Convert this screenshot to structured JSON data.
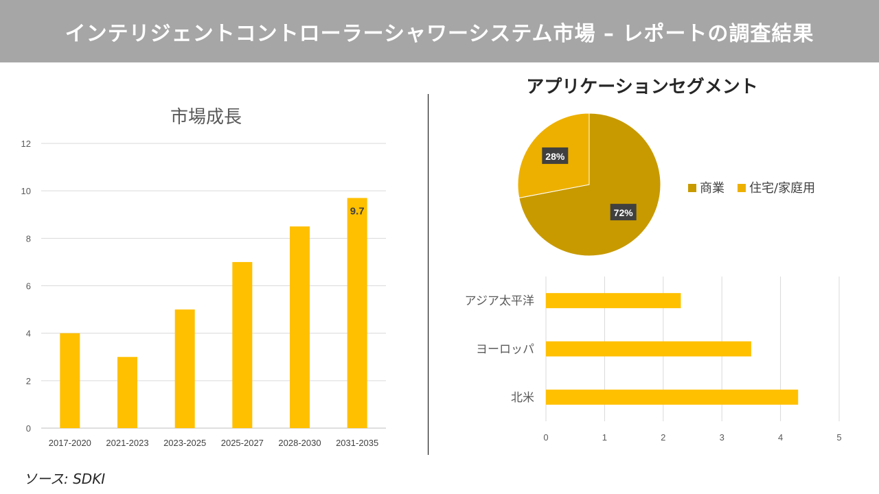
{
  "banner_title": "インテリジェントコントローラーシャワーシステム市場 – レポートの調査結果",
  "source_text": "ソース: SDKI",
  "colors": {
    "bar": "#ffc000",
    "pie_commercial": "#c89a00",
    "pie_residential": "#edb000"
  },
  "chart_data": [
    {
      "type": "bar",
      "title": "市場成長",
      "categories": [
        "2017-2020",
        "2021-2023",
        "2023-2025",
        "2025-2027",
        "2028-2030",
        "2031-2035"
      ],
      "values": [
        4,
        3,
        5,
        7,
        8.5,
        9.7
      ],
      "ylim": [
        0,
        12
      ],
      "yticks": [
        0,
        2,
        4,
        6,
        8,
        10,
        12
      ],
      "data_labels": [
        {
          "category": "2031-2035",
          "text": "9.7"
        }
      ],
      "grid": true
    },
    {
      "type": "pie",
      "title": "アプリケーションセグメント",
      "labels": [
        "商業",
        "住宅/家庭用"
      ],
      "values": [
        72,
        28
      ],
      "value_labels": [
        "72%",
        "28%"
      ],
      "legend": "right"
    },
    {
      "type": "bar",
      "orientation": "horizontal",
      "categories": [
        "アジア太平洋",
        "ヨーロッパ",
        "北米"
      ],
      "values": [
        2.3,
        3.5,
        4.3
      ],
      "xlim": [
        0,
        5
      ],
      "xticks": [
        0,
        1,
        2,
        3,
        4,
        5
      ],
      "grid": true
    }
  ]
}
